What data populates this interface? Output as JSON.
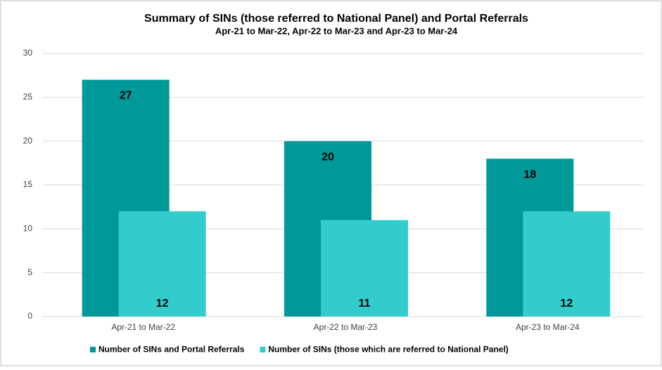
{
  "chart_data": {
    "type": "bar",
    "title": "Summary of SINs (those referred to National Panel) and Portal Referrals",
    "subtitle": "Apr-21 to Mar-22, Apr-22 to Mar-23 and Apr-23 to Mar-24",
    "categories": [
      "Apr-21 to Mar-22",
      "Apr-22 to Mar-23",
      "Apr-23 to Mar-24"
    ],
    "series": [
      {
        "name": "Number of SINs and Portal Referrals",
        "color": "#00999a",
        "values": [
          27,
          20,
          18
        ]
      },
      {
        "name": "Number of SINs (those which are referred to National Panel)",
        "color": "#33cccc",
        "values": [
          12,
          11,
          12
        ]
      }
    ],
    "ylim": [
      0,
      30
    ],
    "yticks": [
      0,
      5,
      10,
      15,
      20,
      25,
      30
    ],
    "grid": true,
    "legend": "bottom"
  }
}
